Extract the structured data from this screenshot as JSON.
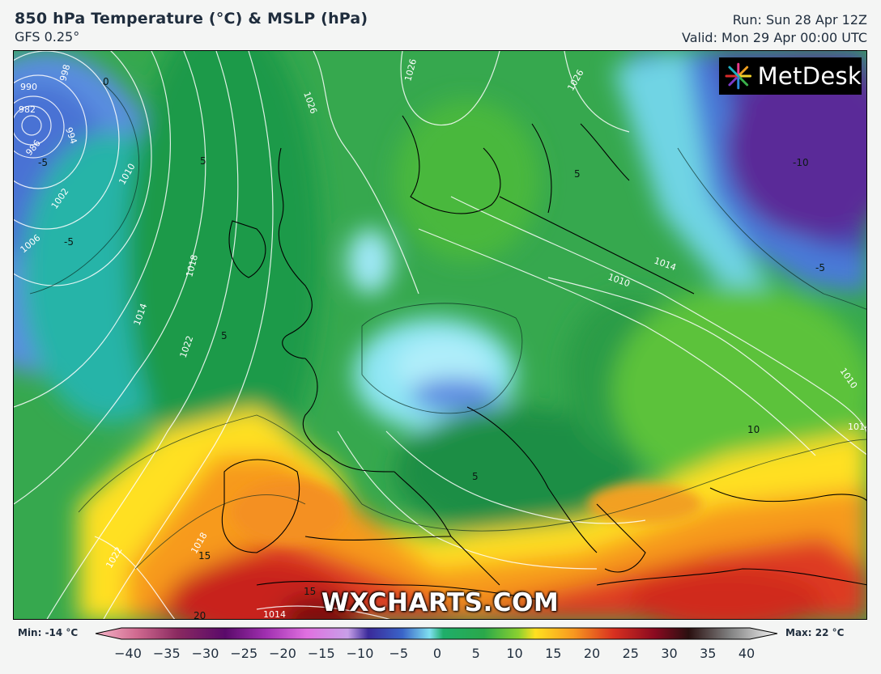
{
  "header": {
    "title": "850 hPa Temperature (°C) & MSLP (hPa)",
    "model": "GFS 0.25°",
    "run": "Run: Sun 28 Apr 12Z",
    "valid": "Valid: Mon 29 Apr 00:00 UTC"
  },
  "brand": {
    "logo_text": "MetDesk",
    "watermark": "WXCHARTS.COM"
  },
  "map": {
    "isobar_labels": [
      "990",
      "982",
      "986",
      "998",
      "994",
      "1002",
      "1006",
      "1010",
      "1026",
      "1026",
      "1026",
      "1018",
      "1014",
      "1022",
      "1014",
      "1010",
      "1010",
      "1014",
      "1018",
      "1022",
      "1014"
    ],
    "isotherm_labels": [
      "0",
      "-5",
      "-5",
      "5",
      "5",
      "5",
      "-10",
      "-5",
      "10",
      "15",
      "15",
      "20",
      "5"
    ]
  },
  "legend": {
    "min_label": "Min: -14 °C",
    "max_label": "Max: 22 °C",
    "ticks": [
      "−40",
      "−35",
      "−30",
      "−25",
      "−20",
      "−15",
      "−10",
      "−5",
      "0",
      "5",
      "10",
      "15",
      "20",
      "25",
      "30",
      "35",
      "40"
    ],
    "scale_min": -40,
    "scale_max": 40,
    "colors": {
      "cold_extreme": "#e8a0b8",
      "purple": "#8a2a8a",
      "blue": "#3a64c8",
      "cyan": "#7fe0f0",
      "green": "#2aa84a",
      "yellow": "#ffe020",
      "orange": "#f89a20",
      "red": "#d83020",
      "dark_red": "#6a0a10",
      "warm_extreme": "#f0f0f0"
    }
  }
}
